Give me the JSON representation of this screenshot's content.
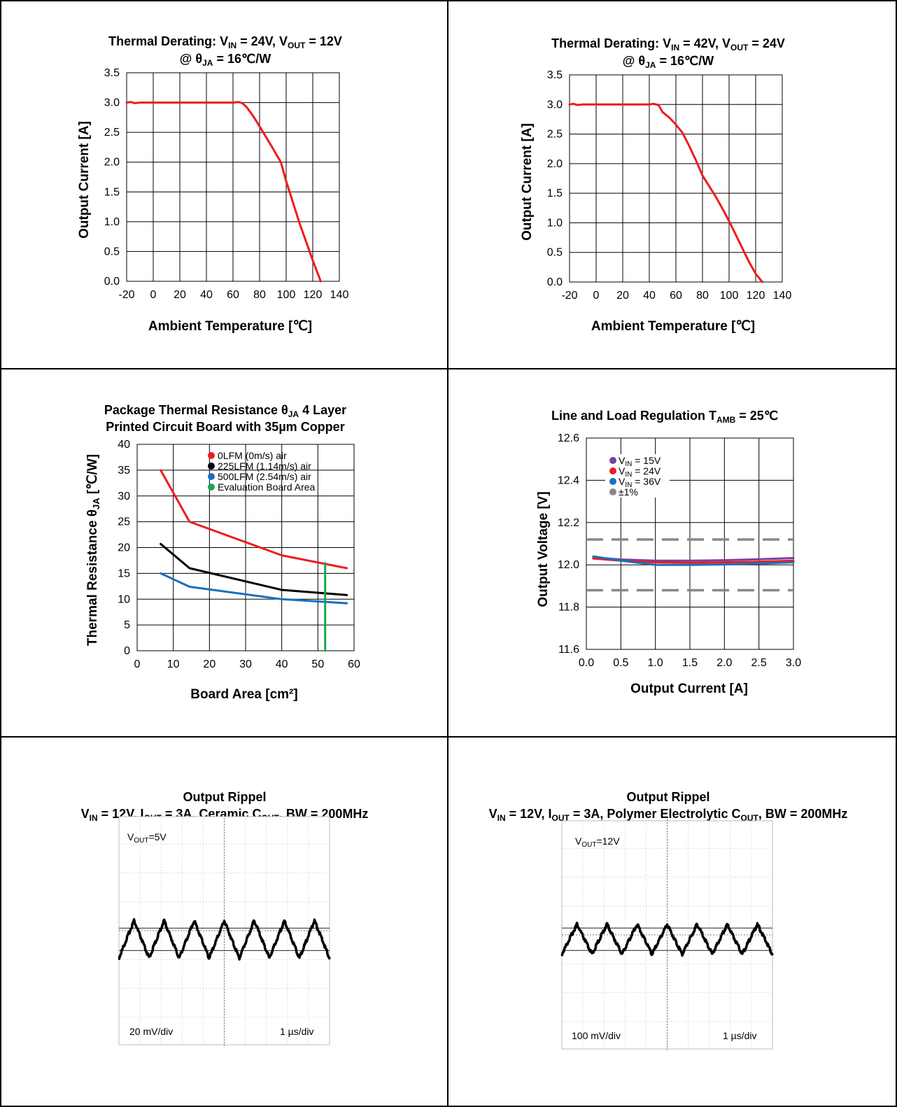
{
  "charts": {
    "c1": {
      "title_line1": {
        "main": "Thermal Derating: V",
        "s1": "IN",
        "mid": " = 24V, V",
        "s2": "OUT",
        "end": " = 12V"
      },
      "title_line2": {
        "main": "@ θ",
        "s1": "JA",
        "end": " = 16℃/W"
      },
      "xlabel": "Ambient Temperature [℃]",
      "ylabel": "Output Current [A]",
      "xticks": [
        "-20",
        "0",
        "20",
        "40",
        "60",
        "80",
        "100",
        "120",
        "140"
      ],
      "yticks": [
        "0.0",
        "0.5",
        "1.0",
        "1.5",
        "2.0",
        "2.5",
        "3.0",
        "3.5"
      ]
    },
    "c2": {
      "title_line1": {
        "main": "Thermal Derating: V",
        "s1": "IN",
        "mid": " = 42V, V",
        "s2": "OUT",
        "end": " = 24V"
      },
      "title_line2": {
        "main": "@ θ",
        "s1": "JA",
        "end": " = 16℃/W"
      },
      "xlabel": "Ambient Temperature [℃]",
      "ylabel": "Output Current [A]",
      "xticks": [
        "-20",
        "0",
        "20",
        "40",
        "60",
        "80",
        "100",
        "120",
        "140"
      ],
      "yticks": [
        "0.0",
        "0.5",
        "1.0",
        "1.5",
        "2.0",
        "2.5",
        "3.0",
        "3.5"
      ]
    },
    "c3": {
      "title_line1": {
        "main": "Package Thermal Resistance θ",
        "s1": "JA",
        "end": "  4 Layer"
      },
      "title_line2": "Printed Circuit Board with 35µm Copper",
      "xlabel": "Board Area [cm²]",
      "ylabel": {
        "main": "Thermal Resistance θ",
        "s1": "JA",
        "end": " [℃/W]"
      },
      "xticks": [
        "0",
        "10",
        "20",
        "30",
        "40",
        "50",
        "60"
      ],
      "yticks": [
        "0",
        "5",
        "10",
        "15",
        "20",
        "25",
        "30",
        "35",
        "40"
      ],
      "legend": [
        "0LFM (0m/s) air",
        "225LFM (1.14m/s) air",
        "500LFM (2.54m/s) air",
        "Evaluation Board Area"
      ]
    },
    "c4": {
      "title": {
        "main": "Line and Load Regulation T",
        "s1": "AMB",
        "end": " = 25℃"
      },
      "xlabel": "Output Current [A]",
      "ylabel": "Output Voltage  [V]",
      "xticks": [
        "0.0",
        "0.5",
        "1.0",
        "1.5",
        "2.0",
        "2.5",
        "3.0"
      ],
      "yticks": [
        "11.6",
        "11.8",
        "12.0",
        "12.2",
        "12.4",
        "12.6"
      ],
      "legend": [
        {
          "main": "V",
          "s1": "IN",
          "end": " = 15V"
        },
        {
          "main": "V",
          "s1": "IN",
          "end": " = 24V"
        },
        {
          "main": "V",
          "s1": "IN",
          "end": " = 36V"
        },
        {
          "main": "±1%",
          "s1": "",
          "end": ""
        }
      ]
    },
    "c5": {
      "title_line1": "Output Rippel",
      "title_line2": {
        "a": "V",
        "s1": "IN",
        "b": " = 12V, I",
        "s2": "OUT",
        "c": " = 3A, Ceramic C",
        "s3": "OUT",
        "d": ", BW = 200MHz"
      },
      "vout": {
        "main": "V",
        "s1": "OUT",
        "end": "=5V"
      },
      "scale_v": "20 mV/div",
      "scale_t": "1 µs/div"
    },
    "c6": {
      "title_line1": "Output Rippel",
      "title_line2": {
        "a": "V",
        "s1": "IN",
        "b": " = 12V, I",
        "s2": "OUT",
        "c": " = 3A, Polymer Electrolytic C",
        "s3": "OUT",
        "d": ", BW = 200MHz"
      },
      "vout": {
        "main": "V",
        "s1": "OUT",
        "end": "=12V"
      },
      "scale_v": "100 mV/div",
      "scale_t": "1 µs/div"
    }
  },
  "chart_data": [
    {
      "type": "line",
      "title": "Thermal Derating: VIN = 24V, VOUT = 12V @ θJA = 16℃/W",
      "xlabel": "Ambient Temperature [℃]",
      "ylabel": "Output Current [A]",
      "xlim": [
        -20,
        140
      ],
      "ylim": [
        0,
        3.5
      ],
      "grid": true,
      "series": [
        {
          "color": "#ee1c1c",
          "x": [
            -20,
            -17,
            -14,
            -10,
            0,
            20,
            40,
            60,
            64,
            67,
            70,
            75,
            80,
            90,
            96,
            100,
            110,
            120,
            126
          ],
          "y": [
            3.0,
            3.01,
            2.99,
            3.0,
            3.0,
            3.0,
            3.0,
            3.0,
            3.01,
            2.99,
            2.93,
            2.78,
            2.6,
            2.23,
            2.0,
            1.68,
            0.98,
            0.35,
            0.0
          ]
        }
      ]
    },
    {
      "type": "line",
      "title": "Thermal Derating: VIN = 42V, VOUT = 24V @ θJA = 16℃/W",
      "xlabel": "Ambient Temperature [℃]",
      "ylabel": "Output Current [A]",
      "xlim": [
        -20,
        140
      ],
      "ylim": [
        0,
        3.5
      ],
      "grid": true,
      "series": [
        {
          "color": "#ee1c1c",
          "x": [
            -20,
            -17,
            -14,
            -10,
            0,
            20,
            40,
            43,
            47,
            50,
            55,
            60,
            65,
            70,
            75,
            80,
            85,
            90,
            95,
            100,
            105,
            110,
            115,
            120,
            125
          ],
          "y": [
            3.0,
            3.01,
            2.99,
            3.0,
            3.0,
            3.0,
            3.0,
            3.01,
            2.99,
            2.87,
            2.78,
            2.66,
            2.52,
            2.3,
            2.06,
            1.8,
            1.62,
            1.44,
            1.24,
            1.03,
            0.8,
            0.57,
            0.34,
            0.14,
            0.0
          ]
        }
      ]
    },
    {
      "type": "line",
      "title": "Package Thermal Resistance θJA 4 Layer Printed Circuit Board with 35µm Copper",
      "xlabel": "Board Area [cm²]",
      "ylabel": "Thermal Resistance θJA [℃/W]",
      "xlim": [
        0,
        60
      ],
      "ylim": [
        0,
        40
      ],
      "grid": true,
      "legend": "top-right",
      "series": [
        {
          "name": "0LFM (0m/s) air",
          "color": "#ee1c1c",
          "x": [
            6.5,
            14.5,
            40,
            58
          ],
          "y": [
            35,
            25,
            18.5,
            16
          ]
        },
        {
          "name": "225LFM (1.14m/s) air",
          "color": "#000000",
          "x": [
            6.5,
            14.5,
            40,
            58
          ],
          "y": [
            20.7,
            16,
            11.8,
            10.8
          ]
        },
        {
          "name": "500LFM (2.54m/s) air",
          "color": "#1a6fc0",
          "x": [
            6.5,
            14.5,
            40,
            58
          ],
          "y": [
            15,
            12.4,
            10,
            9.2
          ]
        },
        {
          "name": "Evaluation Board Area",
          "color": "#15a850",
          "x": [
            52,
            52
          ],
          "y": [
            0,
            17
          ]
        }
      ]
    },
    {
      "type": "line",
      "title": "Line and Load Regulation TAMB = 25℃",
      "xlabel": "Output Current [A]",
      "ylabel": "Output Voltage  [V]",
      "xlim": [
        0,
        3
      ],
      "ylim": [
        11.6,
        12.6
      ],
      "grid": true,
      "legend": "top-left",
      "series": [
        {
          "name": "VIN = 15V",
          "color": "#7b3fa0",
          "x": [
            0.1,
            0.5,
            1.0,
            1.5,
            2.0,
            2.5,
            3.0
          ],
          "y": [
            12.035,
            12.025,
            12.02,
            12.02,
            12.022,
            12.026,
            12.032
          ]
        },
        {
          "name": "VIN = 24V",
          "color": "#ee1c1c",
          "x": [
            0.1,
            0.5,
            1.0,
            1.5,
            2.0,
            2.5,
            3.0
          ],
          "y": [
            12.03,
            12.02,
            12.012,
            12.01,
            12.012,
            12.015,
            12.02
          ]
        },
        {
          "name": "VIN = 36V",
          "color": "#1a6fc0",
          "x": [
            0.1,
            0.5,
            1.0,
            1.5,
            2.0,
            2.5,
            3.0
          ],
          "y": [
            12.04,
            12.02,
            12.0,
            12.0,
            12.002,
            12.006,
            12.012
          ]
        },
        {
          "name": "±1%",
          "color": "#888888",
          "x": [
            0,
            3,
            0,
            3
          ],
          "y": [
            12.12,
            12.12,
            11.88,
            11.88
          ]
        }
      ]
    },
    {
      "type": "line",
      "title": "Output Rippel VIN = 12V, IOUT = 3A, Ceramic COUT, BW = 200MHz",
      "xlabel": "1 µs/div",
      "ylabel": "20 mV/div",
      "xlim": [
        0,
        10
      ],
      "ylim": [
        -4,
        4
      ],
      "grid": true,
      "series": [
        {
          "color": "#000000",
          "x": [
            0,
            1.25,
            2.5,
            3.75,
            5,
            6.25,
            7.5,
            8.75,
            10
          ],
          "y": [
            0,
            0,
            0,
            0,
            0,
            0,
            0,
            0,
            0
          ],
          "ripple_periods": 7,
          "ripple_amplitude_div": 0.25
        }
      ]
    },
    {
      "type": "line",
      "title": "Output Rippel VIN = 12V, IOUT = 3A, Polymer Electrolytic COUT, BW = 200MHz",
      "xlabel": "1 µs/div",
      "ylabel": "100 mV/div",
      "xlim": [
        0,
        10
      ],
      "ylim": [
        -4,
        4
      ],
      "grid": true,
      "series": [
        {
          "color": "#000000",
          "x": [
            0,
            1.25,
            2.5,
            3.75,
            5,
            6.25,
            7.5,
            8.75,
            10
          ],
          "y": [
            0,
            0,
            0,
            0,
            0,
            0,
            0,
            0,
            0
          ],
          "ripple_periods": 7,
          "ripple_amplitude_div": 0.2
        }
      ]
    }
  ]
}
